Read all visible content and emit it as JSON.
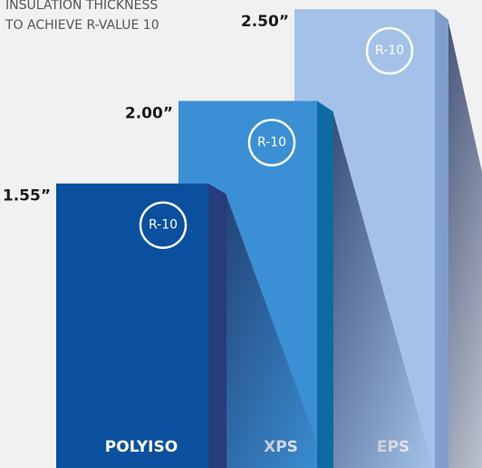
{
  "chart_data": {
    "type": "bar",
    "title": [
      "INSULATION THICKNESS",
      "TO ACHIEVE R-VALUE 10"
    ],
    "categories": [
      "POLYISO",
      "XPS",
      "EPS"
    ],
    "values": [
      1.55,
      2.0,
      2.5
    ],
    "value_labels": [
      "1.55”",
      "2.00”",
      "2.50”"
    ],
    "annotations": [
      "R-10",
      "R-10",
      "R-10"
    ],
    "colors": [
      "#0b4f9f",
      "#3b8fd4",
      "#a4c2e7"
    ],
    "side_colors": [
      "#273c7b",
      "#0d6ba3",
      "#7f9fca"
    ],
    "ylim": [
      0,
      2.55
    ]
  }
}
